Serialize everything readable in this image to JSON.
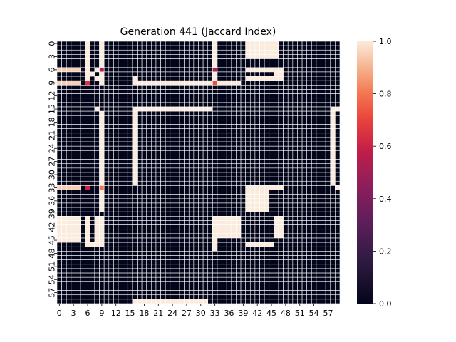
{
  "chart_data": {
    "type": "heatmap",
    "title": "Generation 441 (Jaccard Index)",
    "xlabel": "",
    "ylabel": "",
    "rows": 60,
    "cols": 60,
    "x_tick_labels": [
      "0",
      "3",
      "6",
      "9",
      "12",
      "15",
      "18",
      "21",
      "24",
      "27",
      "30",
      "33",
      "36",
      "39",
      "42",
      "45",
      "48",
      "51",
      "54",
      "57"
    ],
    "y_tick_labels": [
      "0",
      "3",
      "6",
      "9",
      "12",
      "15",
      "18",
      "21",
      "24",
      "27",
      "30",
      "33",
      "36",
      "39",
      "42",
      "45",
      "48",
      "51",
      "54",
      "57"
    ],
    "colorbar": {
      "range": [
        0.0,
        1.0
      ],
      "ticks": [
        "0.0",
        "0.2",
        "0.4",
        "0.6",
        "0.8",
        "1.0"
      ],
      "colormap": "rocket"
    },
    "grid_line_color": "#ffffff",
    "background_value": 0.0,
    "regions": [
      {
        "rows": [
          0,
          9
        ],
        "cols": [
          6,
          6
        ],
        "value": 1.0
      },
      {
        "rows": [
          0,
          9
        ],
        "cols": [
          9,
          9
        ],
        "value": 1.0
      },
      {
        "rows": [
          0,
          9
        ],
        "cols": [
          33,
          33
        ],
        "value": 1.0
      },
      {
        "rows": [
          0,
          3
        ],
        "cols": [
          40,
          46
        ],
        "value": 1.0
      },
      {
        "rows": [
          6,
          6
        ],
        "cols": [
          0,
          4
        ],
        "value": 0.95
      },
      {
        "rows": [
          6,
          6
        ],
        "cols": [
          40,
          47
        ],
        "value": 1.0
      },
      {
        "rows": [
          7,
          7
        ],
        "cols": [
          46,
          47
        ],
        "value": 1.0
      },
      {
        "rows": [
          8,
          8
        ],
        "cols": [
          40,
          47
        ],
        "value": 1.0
      },
      {
        "rows": [
          9,
          9
        ],
        "cols": [
          0,
          4
        ],
        "value": 0.95
      },
      {
        "rows": [
          9,
          9
        ],
        "cols": [
          16,
          38
        ],
        "value": 1.0
      },
      {
        "rows": [
          8,
          8
        ],
        "cols": [
          16,
          16
        ],
        "value": 1.0
      },
      {
        "rows": [
          15,
          15
        ],
        "cols": [
          8,
          8
        ],
        "value": 1.0
      },
      {
        "rows": [
          15,
          15
        ],
        "cols": [
          17,
          32
        ],
        "value": 1.0
      },
      {
        "rows": [
          16,
          33
        ],
        "cols": [
          9,
          9
        ],
        "value": 1.0
      },
      {
        "rows": [
          15,
          32
        ],
        "cols": [
          16,
          16
        ],
        "value": 1.0
      },
      {
        "rows": [
          15,
          32
        ],
        "cols": [
          58,
          58
        ],
        "value": 1.0
      },
      {
        "rows": [
          15,
          15
        ],
        "cols": [
          59,
          59
        ],
        "value": 1.0
      },
      {
        "rows": [
          33,
          33
        ],
        "cols": [
          0,
          4
        ],
        "value": 0.95
      },
      {
        "rows": [
          33,
          33
        ],
        "cols": [
          40,
          47
        ],
        "value": 1.0
      },
      {
        "rows": [
          33,
          33
        ],
        "cols": [
          59,
          59
        ],
        "value": 1.0
      },
      {
        "rows": [
          34,
          38
        ],
        "cols": [
          40,
          44
        ],
        "value": 1.0
      },
      {
        "rows": [
          34,
          38
        ],
        "cols": [
          9,
          9
        ],
        "value": 1.0
      },
      {
        "rows": [
          40,
          45
        ],
        "cols": [
          0,
          4
        ],
        "value": 1.0
      },
      {
        "rows": [
          40,
          45
        ],
        "cols": [
          6,
          6
        ],
        "value": 1.0
      },
      {
        "rows": [
          40,
          45
        ],
        "cols": [
          8,
          9
        ],
        "value": 1.0
      },
      {
        "rows": [
          46,
          46
        ],
        "cols": [
          6,
          9
        ],
        "value": 1.0
      },
      {
        "rows": [
          40,
          44
        ],
        "cols": [
          33,
          38
        ],
        "value": 1.0
      },
      {
        "rows": [
          45,
          47
        ],
        "cols": [
          33,
          33
        ],
        "value": 1.0
      },
      {
        "rows": [
          40,
          44
        ],
        "cols": [
          46,
          47
        ],
        "value": 1.0
      },
      {
        "rows": [
          46,
          46
        ],
        "cols": [
          40,
          45
        ],
        "value": 1.0
      },
      {
        "rows": [
          59,
          59
        ],
        "cols": [
          16,
          31
        ],
        "value": 1.0
      },
      {
        "rows": [
          6,
          6
        ],
        "cols": [
          8,
          8
        ],
        "value": 1.0
      },
      {
        "rows": [
          7,
          7
        ],
        "cols": [
          7,
          7
        ],
        "value": 1.0
      },
      {
        "rows": [
          8,
          8
        ],
        "cols": [
          8,
          8
        ],
        "value": 1.0
      }
    ],
    "highlight_cells": [
      {
        "row": 6,
        "col": 9,
        "value": 0.55
      },
      {
        "row": 6,
        "col": 33,
        "value": 0.55
      },
      {
        "row": 9,
        "col": 6,
        "value": 0.65
      },
      {
        "row": 9,
        "col": 33,
        "value": 0.72
      },
      {
        "row": 33,
        "col": 6,
        "value": 0.6
      },
      {
        "row": 33,
        "col": 9,
        "value": 0.8
      }
    ]
  }
}
